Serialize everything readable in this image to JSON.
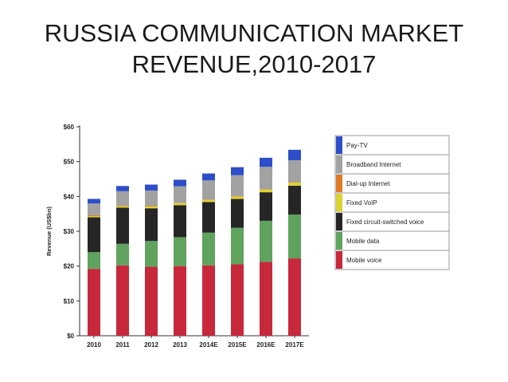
{
  "slide": {
    "title_line1": "RUSSIA COMMUNICATION MARKET",
    "title_line2": "REVENUE,2010-2017"
  },
  "chart_data": {
    "type": "bar",
    "stacked": true,
    "categories": [
      "2010",
      "2011",
      "2012",
      "2013",
      "2014E",
      "2015E",
      "2016E",
      "2017E"
    ],
    "ylabel": "Revenue (US$bn)",
    "ylim": [
      0,
      60
    ],
    "yticks": [
      "$0",
      "$10",
      "$20",
      "$30",
      "$40",
      "$50",
      "$60"
    ],
    "grid": false,
    "legend_position": "right",
    "series": [
      {
        "name": "Mobile voice",
        "color": "#c8283c",
        "values": [
          19.2,
          20.2,
          19.8,
          20.0,
          20.2,
          20.5,
          21.2,
          22.2
        ]
      },
      {
        "name": "Mobile data",
        "color": "#5fa35f",
        "values": [
          4.8,
          6.2,
          7.4,
          8.3,
          9.4,
          10.5,
          11.8,
          12.6
        ]
      },
      {
        "name": "Fixed circuit-switched voice",
        "color": "#262626",
        "values": [
          10.0,
          10.4,
          9.4,
          9.2,
          8.8,
          8.3,
          8.2,
          8.3
        ]
      },
      {
        "name": "Fixed VoIP",
        "color": "#dcd232",
        "values": [
          0.3,
          0.4,
          0.5,
          0.6,
          0.6,
          0.7,
          0.8,
          0.9
        ]
      },
      {
        "name": "Dial-up Internet",
        "color": "#e07a28",
        "values": [
          0.3,
          0.2,
          0.2,
          0.1,
          0.1,
          0.1,
          0.1,
          0.1
        ]
      },
      {
        "name": "Broadband Internet",
        "color": "#a2a2a2",
        "values": [
          3.4,
          4.1,
          4.4,
          4.7,
          5.5,
          6.0,
          6.4,
          6.3
        ]
      },
      {
        "name": "Pay-TV",
        "color": "#2d4ec8",
        "values": [
          1.3,
          1.5,
          1.7,
          1.9,
          2.0,
          2.3,
          2.6,
          3.0
        ]
      }
    ],
    "legend_order": [
      "Pay-TV",
      "Broadband Internet",
      "Dial-up Internet",
      "Fixed VoIP",
      "Fixed circuit-switched voice",
      "Mobile data",
      "Mobile voice"
    ]
  }
}
